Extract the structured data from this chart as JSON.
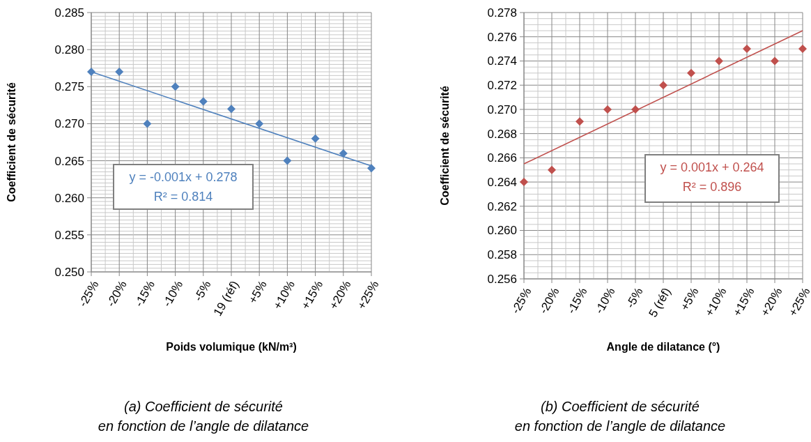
{
  "chart_data": [
    {
      "type": "scatter",
      "title": "(a) Coefficient de sécurité\nen fonction de l’angle de dilatance",
      "xlabel": "Poids volumique (kN/m³)",
      "ylabel": "Coefficient de sécurité",
      "categories": [
        "-25%",
        "-20%",
        "-15%",
        "-10%",
        "-5%",
        "19 (réf)",
        "+5%",
        "+10%",
        "+15%",
        "+20%",
        "+25%"
      ],
      "series": [
        {
          "type": "scatter",
          "color": "#4f81bd",
          "marker": "diamond",
          "values": [
            0.277,
            0.277,
            0.27,
            0.275,
            0.273,
            0.272,
            0.27,
            0.265,
            0.268,
            0.266,
            0.264
          ]
        },
        {
          "type": "line",
          "color": "#4f81bd",
          "x": [
            "-25%",
            "+25%"
          ],
          "values": [
            0.277,
            0.2643
          ]
        }
      ],
      "annotations": [
        "y = -0.001x + 0.278",
        "R² = 0.814"
      ],
      "ylim": [
        0.25,
        0.285
      ],
      "yticks": [
        {
          "value": 0.25,
          "label": "0.250"
        },
        {
          "value": 0.255,
          "label": "0.255"
        },
        {
          "value": 0.26,
          "label": "0.260"
        },
        {
          "value": 0.265,
          "label": "0.265"
        },
        {
          "value": 0.27,
          "label": "0.270"
        },
        {
          "value": 0.275,
          "label": "0.275"
        },
        {
          "value": 0.28,
          "label": "0.280"
        },
        {
          "value": 0.285,
          "label": "0.285"
        }
      ],
      "grid": true
    },
    {
      "type": "scatter",
      "title": "(b) Coefficient de sécurité\nen fonction de l’angle de dilatance",
      "xlabel": "Angle de dilatance (°)",
      "ylabel": "Coefficient de sécurité",
      "categories": [
        "-25%",
        "-20%",
        "-15%",
        "-10%",
        "-5%",
        "5 (réf)",
        "+5%",
        "+10%",
        "+15%",
        "+20%",
        "+25%"
      ],
      "series": [
        {
          "type": "scatter",
          "color": "#c0504d",
          "marker": "diamond",
          "values": [
            0.264,
            0.265,
            0.269,
            0.27,
            0.27,
            0.272,
            0.273,
            0.274,
            0.275,
            0.274,
            0.275
          ]
        },
        {
          "type": "line",
          "color": "#c0504d",
          "x": [
            "-25%",
            "+25%"
          ],
          "values": [
            0.2655,
            0.2765
          ]
        }
      ],
      "annotations": [
        "y = 0.001x + 0.264",
        "R² = 0.896"
      ],
      "ylim": [
        0.256,
        0.278
      ],
      "yticks": [
        {
          "value": 0.256,
          "label": "0.256"
        },
        {
          "value": 0.258,
          "label": "0.258"
        },
        {
          "value": 0.26,
          "label": "0.260"
        },
        {
          "value": 0.262,
          "label": "0.262"
        },
        {
          "value": 0.264,
          "label": "0.264"
        },
        {
          "value": 0.266,
          "label": "0.266"
        },
        {
          "value": 0.268,
          "label": "0.268"
        },
        {
          "value": 0.27,
          "label": "0.270"
        },
        {
          "value": 0.272,
          "label": "0.272"
        },
        {
          "value": 0.274,
          "label": "0.274"
        },
        {
          "value": 0.276,
          "label": "0.276"
        },
        {
          "value": 0.278,
          "label": "0.278"
        }
      ],
      "grid": true
    }
  ]
}
